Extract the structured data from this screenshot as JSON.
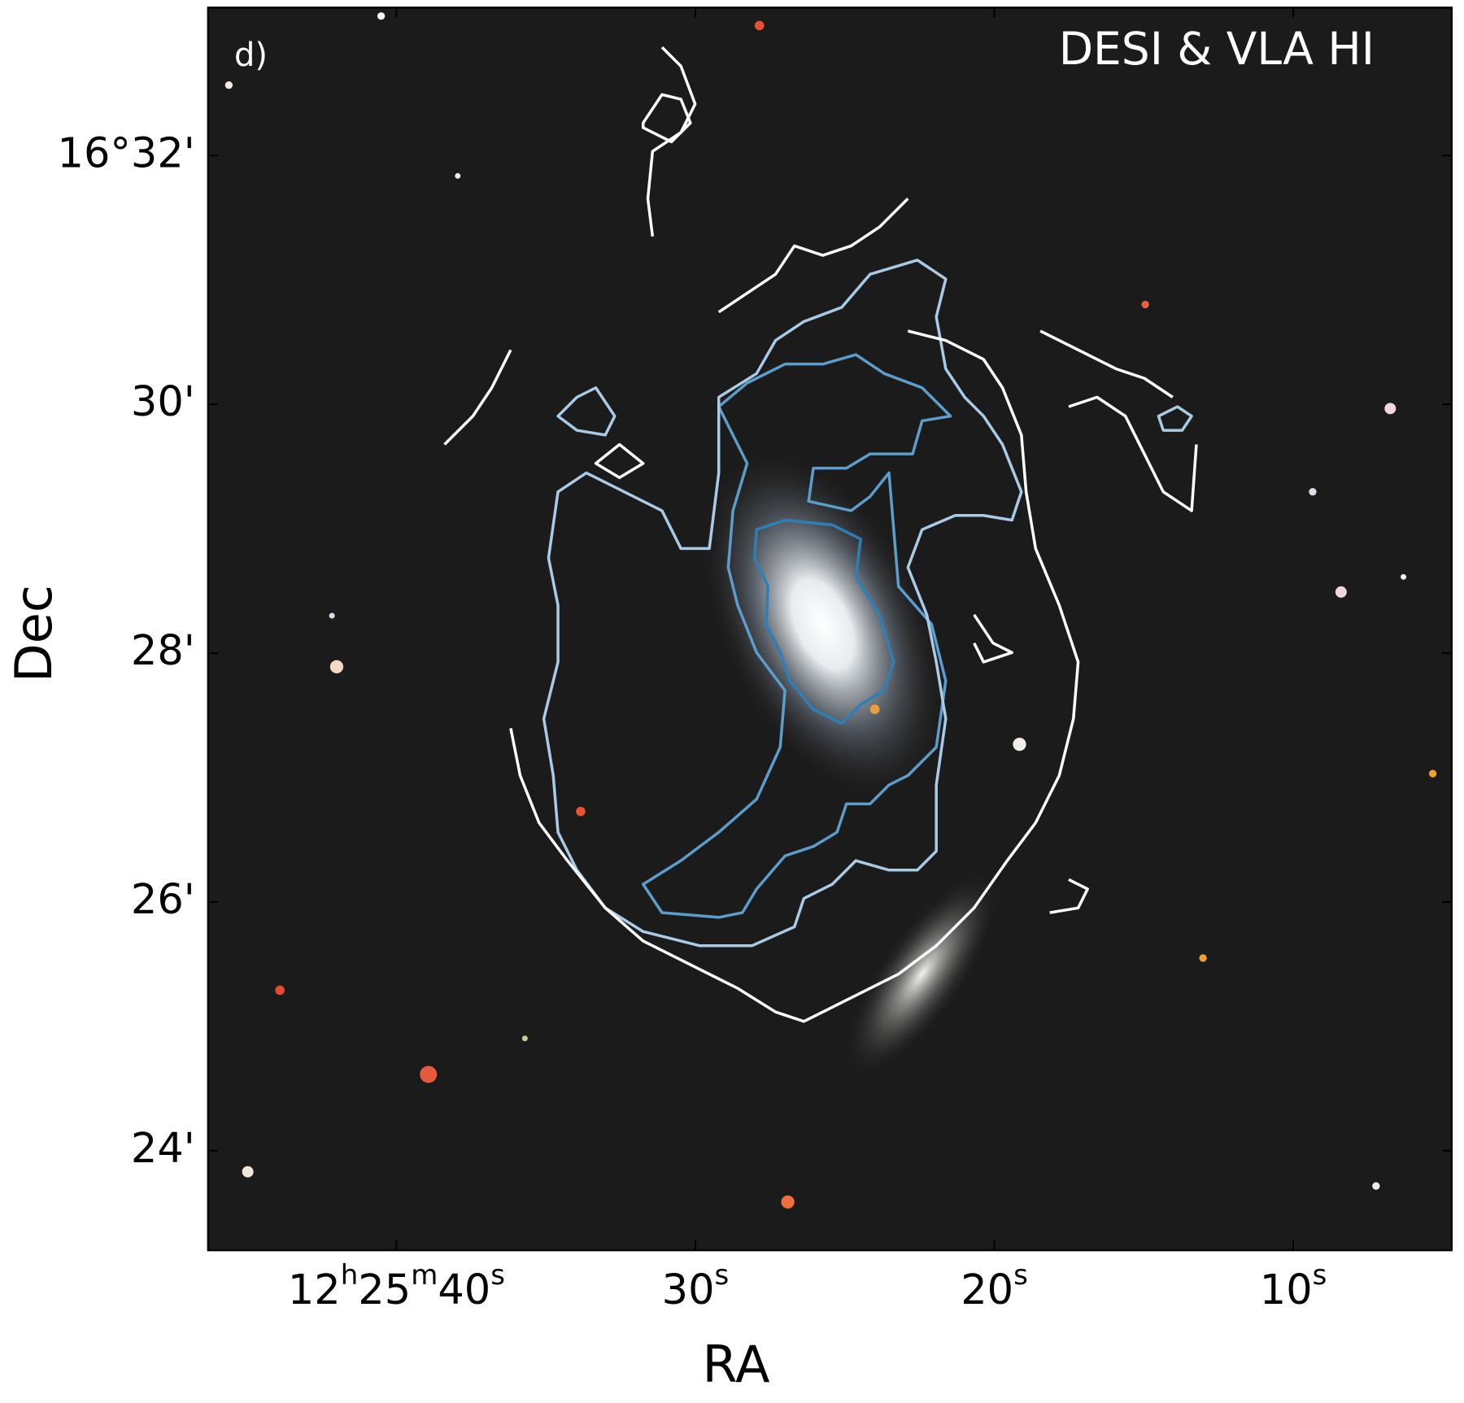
{
  "panel_label": "d)",
  "chart_data": {
    "type": "image",
    "annotation": "DESI & VLA HI",
    "x_label": "RA",
    "y_label": "Dec",
    "xlim": [
      46.3,
      4.7
    ],
    "ylim": [
      23.2,
      33.19
    ],
    "xticks": [
      {
        "value": 40,
        "label": "12h25m40s"
      },
      {
        "value": 30,
        "label": "30s"
      },
      {
        "value": 20,
        "label": "20s"
      },
      {
        "value": 10,
        "label": "10s"
      }
    ],
    "yticks": [
      {
        "value": 32,
        "label": "16°32'"
      },
      {
        "value": 30,
        "label": "30'"
      },
      {
        "value": 28,
        "label": "28'"
      },
      {
        "value": 26,
        "label": "26'"
      },
      {
        "value": 24,
        "label": "24'"
      }
    ]
  }
}
